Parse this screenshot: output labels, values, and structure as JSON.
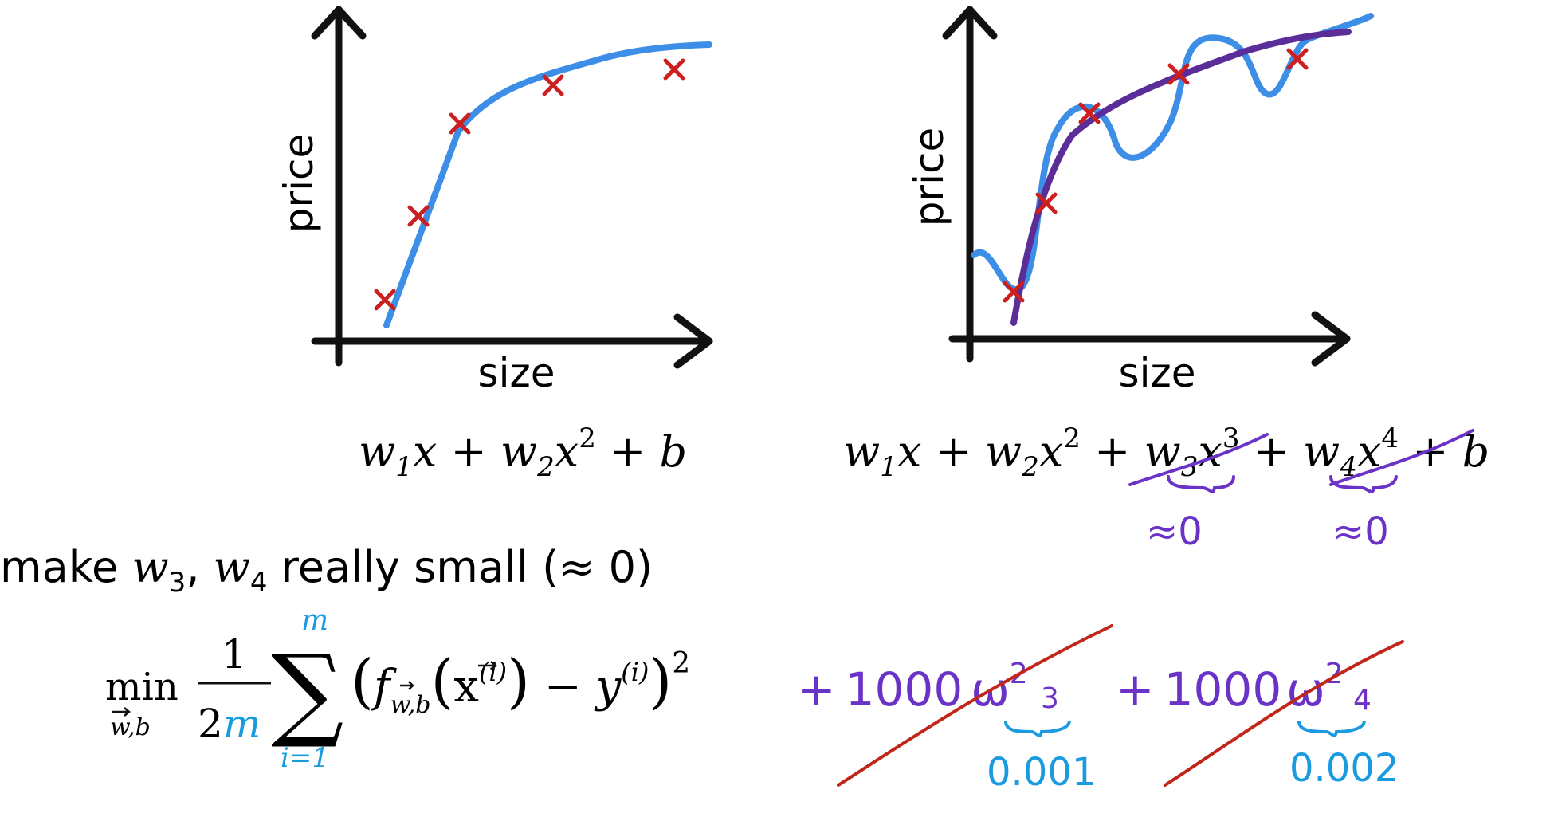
{
  "left_plot": {
    "xlabel": "size",
    "ylabel": "price",
    "formula": {
      "w1": "w",
      "sub1": "1",
      "x": "x",
      "plus": "+",
      "w2": "w",
      "sub2": "2",
      "x2": "x",
      "pow2": "2",
      "b": "b"
    }
  },
  "right_plot": {
    "xlabel": "size",
    "ylabel": "price",
    "formula": {
      "w1": "w",
      "sub1": "1",
      "w2": "w",
      "sub2": "2",
      "w3": "w",
      "sub3": "3",
      "pow3": "3",
      "w4": "w",
      "sub4": "4",
      "pow4": "4",
      "b": "b"
    },
    "approx_w3": "≈0",
    "approx_w4": "≈0"
  },
  "statement": {
    "prefix": "make",
    "w3": "w",
    "sub3": "3",
    "comma": ",",
    "w4": "w",
    "sub4": "4",
    "suffix": "really small (≈ 0)"
  },
  "cost": {
    "min": "min",
    "min_sub": "w,b",
    "frac_num": "1",
    "frac_den_2": "2",
    "frac_den_m": "m",
    "sum_top": "m",
    "sum_bottom": "i=1",
    "f": "f",
    "f_sub": "w,b",
    "x": "x",
    "sup_i": "(i)",
    "minus": "−",
    "y": "y",
    "square": "2"
  },
  "reg": {
    "plus1": "+",
    "coef1": "1000",
    "w3": "ω",
    "sq3": "2",
    "sub3": "3",
    "val3": "0.001",
    "plus2": "+",
    "coef2": "1000",
    "w4": "ω",
    "sq4": "2",
    "sub4": "4",
    "val4": "0.002"
  },
  "colors": {
    "axis": "#111111",
    "data_point": "#cc1f1f",
    "fit_curve": "#3d8ee6",
    "handwriting": "#6b32c7",
    "purple_curve": "#5b2d99",
    "blue_annot": "#1a9be0",
    "strike_red": "#c0261a"
  },
  "icons": {
    "data_marker": "x-cross",
    "axis_arrow": "arrow-head"
  }
}
